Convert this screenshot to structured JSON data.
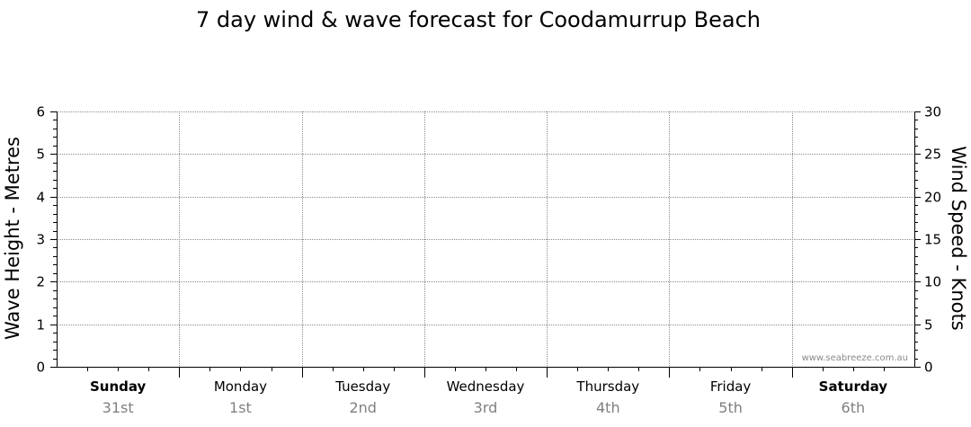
{
  "chart_data": {
    "type": "line",
    "title": "7 day wind & wave forecast for Coodamurrup Beach",
    "ylabel": "Wave Height - Metres",
    "y2label": "Wind Speed - Knots",
    "ylim": [
      0,
      6
    ],
    "y2lim": [
      0,
      30
    ],
    "yticks": [
      "0",
      "1",
      "2",
      "3",
      "4",
      "5",
      "6"
    ],
    "y2ticks": [
      "0",
      "5",
      "10",
      "15",
      "20",
      "25",
      "30"
    ],
    "grid": true,
    "days": [
      {
        "name": "Sunday",
        "date": "31st",
        "weekend": true
      },
      {
        "name": "Monday",
        "date": "1st",
        "weekend": false
      },
      {
        "name": "Tuesday",
        "date": "2nd",
        "weekend": false
      },
      {
        "name": "Wednesday",
        "date": "3rd",
        "weekend": false
      },
      {
        "name": "Thursday",
        "date": "4th",
        "weekend": false
      },
      {
        "name": "Friday",
        "date": "5th",
        "weekend": false
      },
      {
        "name": "Saturday",
        "date": "6th",
        "weekend": true
      }
    ],
    "series": []
  },
  "watermark": "www.seabreeze.com.au",
  "colors": {
    "grid": "#8c8c8c",
    "axis": "#000000",
    "date_text": "#808080"
  }
}
